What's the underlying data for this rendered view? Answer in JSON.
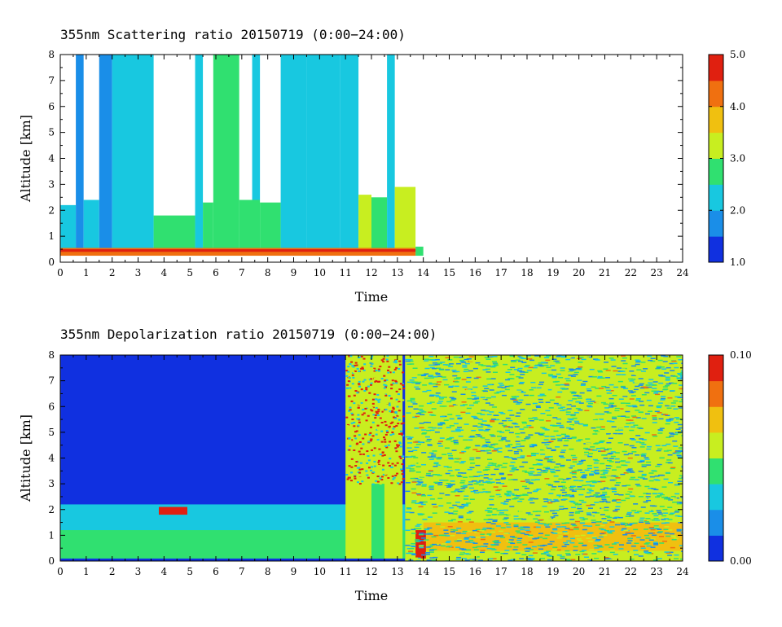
{
  "chart_data": [
    {
      "type": "heatmap",
      "title": "355nm Scattering ratio  20150719 (0:00−24:00)",
      "xlabel": "Time",
      "ylabel": "Altitude [km]",
      "xlim": [
        0,
        24
      ],
      "ylim": [
        0,
        8
      ],
      "x_ticks": [
        "0",
        "1",
        "2",
        "3",
        "4",
        "5",
        "6",
        "7",
        "8",
        "9",
        "10",
        "11",
        "12",
        "13",
        "14",
        "15",
        "16",
        "17",
        "18",
        "19",
        "20",
        "21",
        "22",
        "23",
        "24"
      ],
      "y_ticks": [
        "0",
        "1",
        "2",
        "3",
        "4",
        "5",
        "6",
        "7",
        "8"
      ],
      "colorbar": {
        "min": 1.0,
        "max": 5.0,
        "ticks": [
          "1.0",
          "2.0",
          "3.0",
          "4.0",
          "5.0"
        ]
      },
      "colors": [
        "#1030e0",
        "#1a8ee8",
        "#18c8e0",
        "#30e070",
        "#c8ee20",
        "#f0c010",
        "#f07010",
        "#e02010"
      ],
      "bands": [
        {
          "x0": 0.0,
          "x1": 0.6,
          "y0": 0.25,
          "y1": 2.2,
          "value": 2.1
        },
        {
          "x0": 0.6,
          "x1": 0.9,
          "y0": 0.25,
          "y1": 8.0,
          "value": 1.8
        },
        {
          "x0": 0.9,
          "x1": 1.5,
          "y0": 0.25,
          "y1": 2.4,
          "value": 2.2
        },
        {
          "x0": 1.5,
          "x1": 2.0,
          "y0": 0.25,
          "y1": 8.0,
          "value": 1.7
        },
        {
          "x0": 2.0,
          "x1": 3.0,
          "y0": 0.25,
          "y1": 8.0,
          "value": 2.1
        },
        {
          "x0": 3.0,
          "x1": 3.6,
          "y0": 0.25,
          "y1": 8.0,
          "value": 2.0
        },
        {
          "x0": 3.6,
          "x1": 5.2,
          "y0": 0.25,
          "y1": 1.8,
          "value": 2.8
        },
        {
          "x0": 5.2,
          "x1": 5.5,
          "y0": 0.25,
          "y1": 8.0,
          "value": 2.3
        },
        {
          "x0": 5.5,
          "x1": 5.9,
          "y0": 0.25,
          "y1": 2.3,
          "value": 2.7
        },
        {
          "x0": 5.9,
          "x1": 6.9,
          "y0": 0.25,
          "y1": 8.0,
          "value": 2.6
        },
        {
          "x0": 6.9,
          "x1": 7.7,
          "y0": 0.25,
          "y1": 2.4,
          "value": 2.8
        },
        {
          "x0": 7.4,
          "x1": 7.7,
          "y0": 2.4,
          "y1": 8.0,
          "value": 2.2
        },
        {
          "x0": 7.7,
          "x1": 8.5,
          "y0": 0.25,
          "y1": 2.3,
          "value": 2.8
        },
        {
          "x0": 8.5,
          "x1": 9.5,
          "y0": 0.25,
          "y1": 8.0,
          "value": 2.4
        },
        {
          "x0": 9.5,
          "x1": 10.8,
          "y0": 0.25,
          "y1": 8.0,
          "value": 2.2
        },
        {
          "x0": 10.8,
          "x1": 11.5,
          "y0": 0.25,
          "y1": 8.0,
          "value": 2.0
        },
        {
          "x0": 11.5,
          "x1": 12.0,
          "y0": 0.25,
          "y1": 2.6,
          "value": 3.0
        },
        {
          "x0": 12.0,
          "x1": 12.6,
          "y0": 0.3,
          "y1": 2.5,
          "value": 2.8
        },
        {
          "x0": 12.6,
          "x1": 12.9,
          "y0": 0.25,
          "y1": 8.0,
          "value": 2.0
        },
        {
          "x0": 12.9,
          "x1": 13.7,
          "y0": 0.25,
          "y1": 2.9,
          "value": 3.2
        },
        {
          "x0": 13.7,
          "x1": 14.0,
          "y0": 0.25,
          "y1": 0.6,
          "value": 2.5
        },
        {
          "x0": 0.0,
          "x1": 13.7,
          "y0": 0.25,
          "y1": 0.55,
          "value": 4.2
        },
        {
          "x0": 0.0,
          "x1": 13.7,
          "y0": 0.4,
          "y1": 0.5,
          "value": 4.9
        }
      ]
    },
    {
      "type": "heatmap",
      "title": "355nm Depolarization ratio  20150719 (0:00−24:00)",
      "xlabel": "Time",
      "ylabel": "Altitude [km]",
      "xlim": [
        0,
        24
      ],
      "ylim": [
        0,
        8
      ],
      "x_ticks": [
        "0",
        "1",
        "2",
        "3",
        "4",
        "5",
        "6",
        "7",
        "8",
        "9",
        "10",
        "11",
        "12",
        "13",
        "14",
        "15",
        "16",
        "17",
        "18",
        "19",
        "20",
        "21",
        "22",
        "23",
        "24"
      ],
      "y_ticks": [
        "0",
        "1",
        "2",
        "3",
        "4",
        "5",
        "6",
        "7",
        "8"
      ],
      "colorbar": {
        "min": 0.0,
        "max": 0.1,
        "ticks": [
          "0.00",
          "0.10"
        ]
      },
      "colors": [
        "#1030e0",
        "#1a8ee8",
        "#18c8e0",
        "#30e070",
        "#c8ee20",
        "#f0c010",
        "#f07010",
        "#e02010"
      ],
      "bands": [
        {
          "x0": 0.0,
          "x1": 13.3,
          "y0": 0.0,
          "y1": 8.0,
          "value": 0.012
        },
        {
          "x0": 0.0,
          "x1": 13.3,
          "y0": 0.1,
          "y1": 2.2,
          "value": 0.032
        },
        {
          "x0": 0.0,
          "x1": 13.3,
          "y0": 0.1,
          "y1": 1.2,
          "value": 0.038
        },
        {
          "x0": 3.8,
          "x1": 4.9,
          "y0": 1.8,
          "y1": 2.1,
          "value": 0.09
        },
        {
          "x0": 11.0,
          "x1": 13.2,
          "y0": 0.1,
          "y1": 8.0,
          "value": 0.05
        },
        {
          "x0": 12.0,
          "x1": 12.5,
          "y0": 0.1,
          "y1": 3.0,
          "value": 0.04
        },
        {
          "x0": 13.3,
          "x1": 24.0,
          "y0": 0.0,
          "y1": 8.0,
          "value": 0.05
        },
        {
          "x0": 14.0,
          "x1": 24.0,
          "y0": 0.4,
          "y1": 1.5,
          "value": 0.065
        },
        {
          "x0": 13.7,
          "x1": 14.1,
          "y0": 0.1,
          "y1": 1.2,
          "value": 0.095
        }
      ]
    }
  ]
}
